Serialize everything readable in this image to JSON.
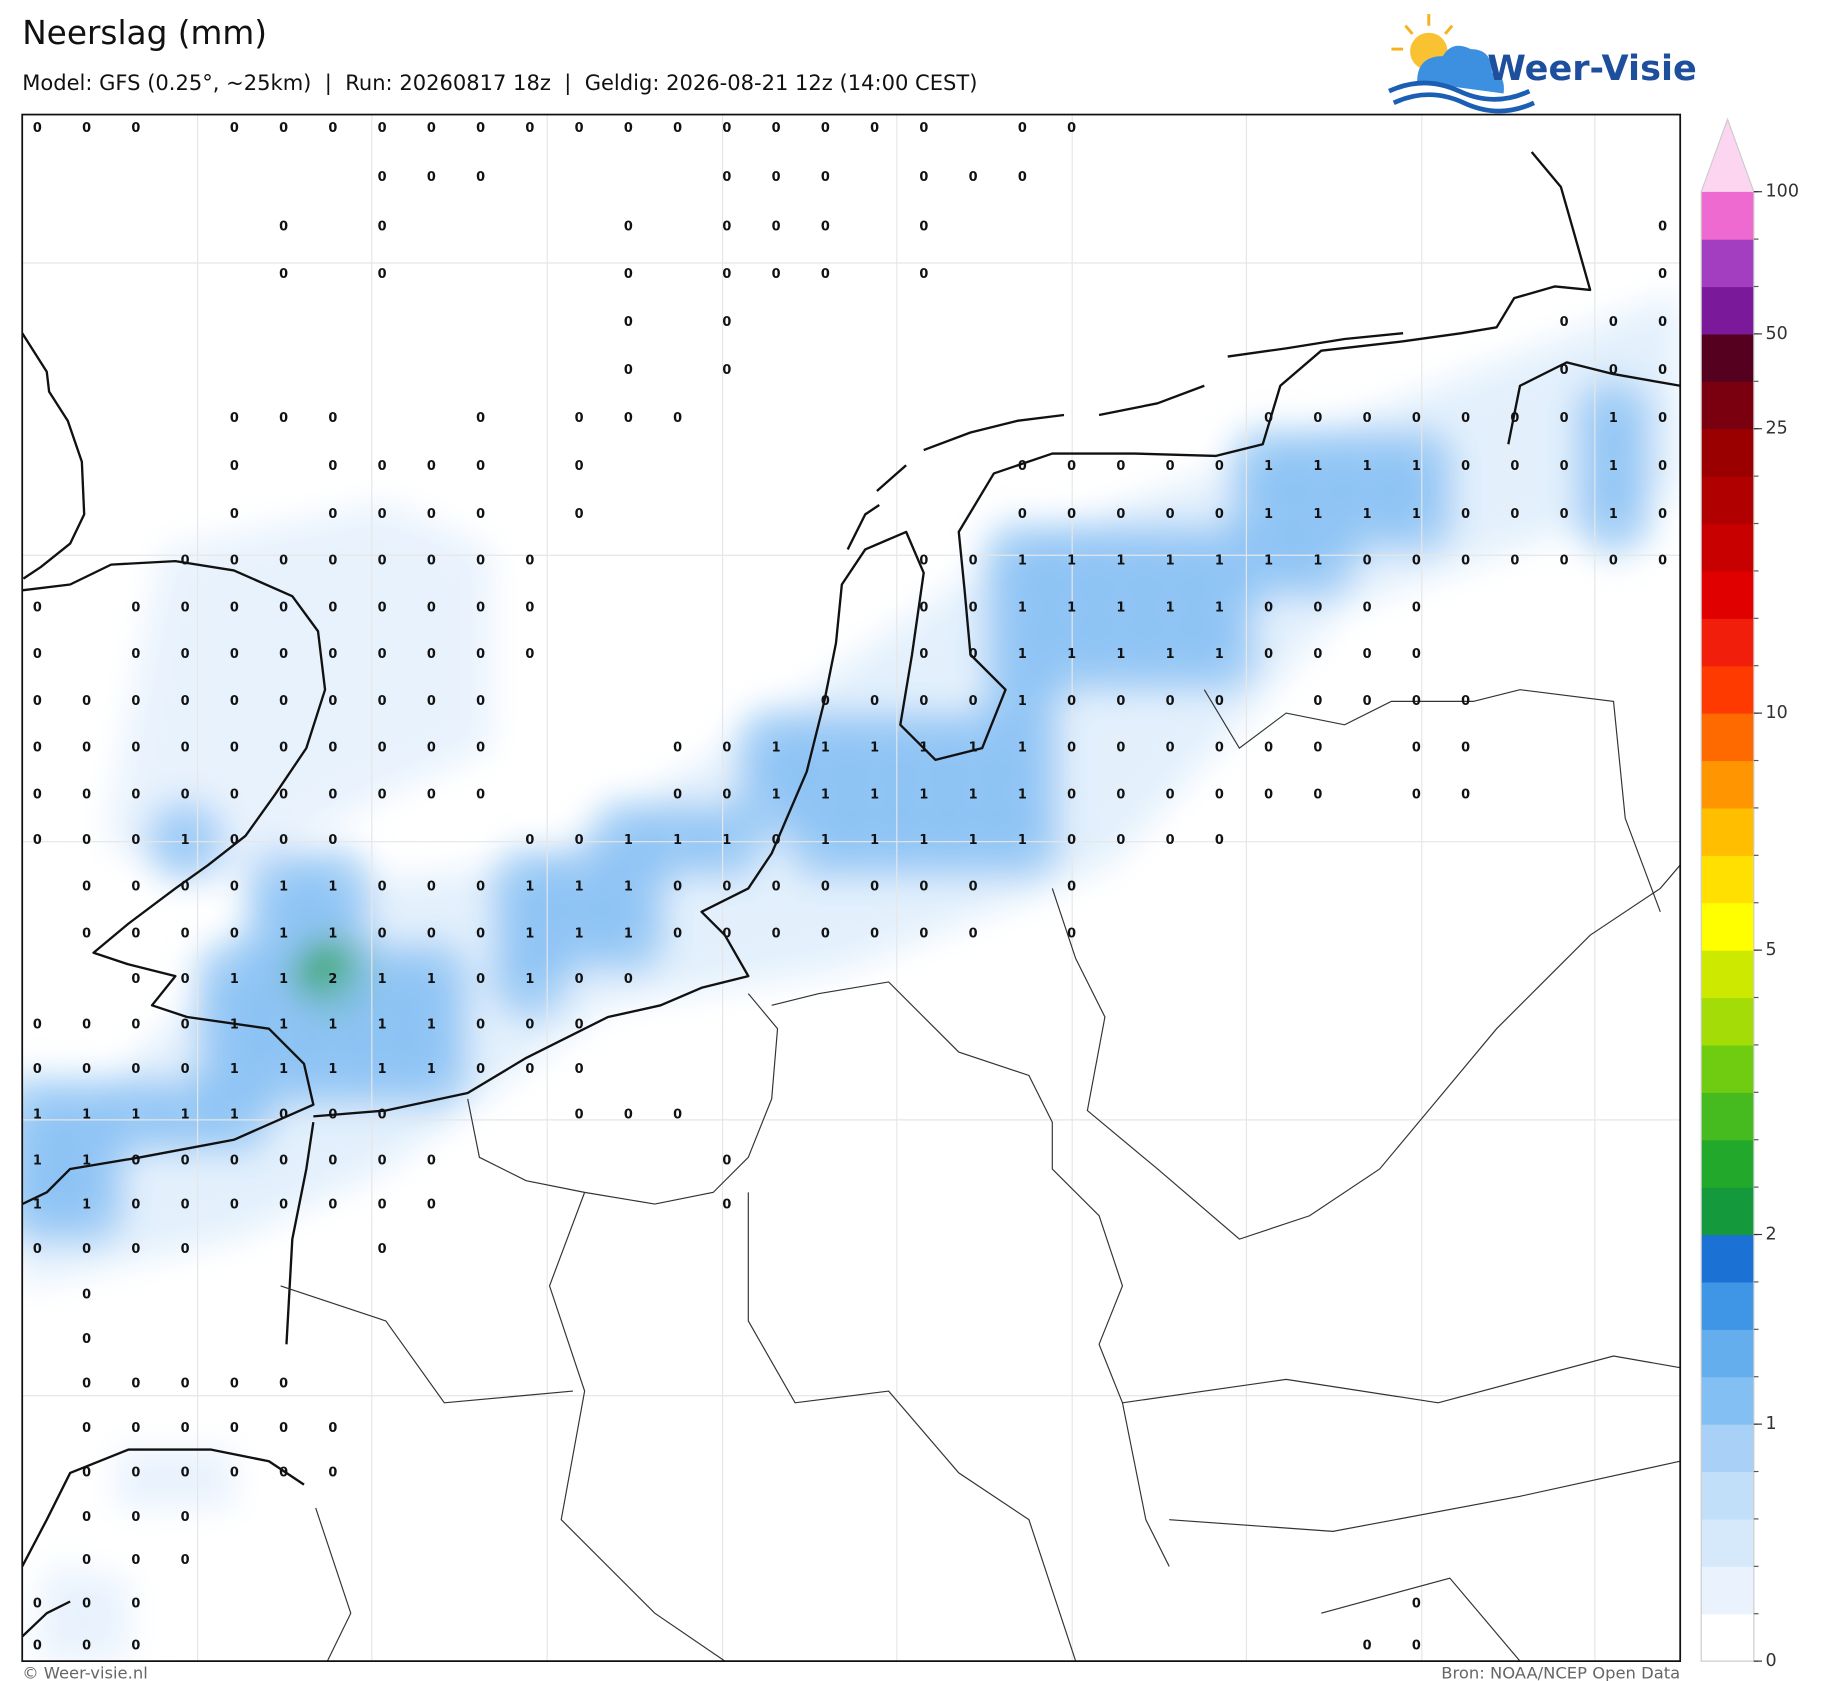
{
  "header": {
    "title": "Neerslag (mm)",
    "subtitle": "Model: GFS (0.25°, ~25km)  |  Run: 20260817 18z  |  Geldig: 2026-08-21 12z (14:00 CEST)"
  },
  "logo": {
    "text": "Weer-Visie"
  },
  "map": {
    "grid": [
      [
        0,
        0,
        0,
        null,
        0,
        0,
        0,
        0,
        0,
        0,
        0,
        0,
        0,
        0,
        0,
        0,
        0,
        0,
        0,
        null,
        0,
        0,
        null,
        null,
        null,
        null,
        null,
        null,
        null,
        null,
        null,
        null,
        null,
        null
      ],
      [
        null,
        null,
        null,
        null,
        null,
        null,
        null,
        0,
        0,
        0,
        null,
        null,
        null,
        null,
        0,
        0,
        0,
        null,
        0,
        0,
        0,
        null,
        null,
        null,
        null,
        null,
        null,
        null,
        null,
        null,
        null,
        null,
        null,
        null
      ],
      [
        null,
        null,
        null,
        null,
        null,
        0,
        null,
        0,
        null,
        null,
        null,
        null,
        0,
        null,
        0,
        0,
        0,
        null,
        0,
        null,
        null,
        null,
        null,
        null,
        null,
        null,
        null,
        null,
        null,
        null,
        null,
        null,
        null,
        0
      ],
      [
        null,
        null,
        null,
        null,
        null,
        0,
        null,
        0,
        null,
        null,
        null,
        null,
        0,
        null,
        0,
        0,
        0,
        null,
        0,
        null,
        null,
        null,
        null,
        null,
        null,
        null,
        null,
        null,
        null,
        null,
        null,
        null,
        null,
        0
      ],
      [
        null,
        null,
        null,
        null,
        null,
        null,
        null,
        null,
        null,
        null,
        null,
        null,
        0,
        null,
        0,
        null,
        null,
        null,
        null,
        null,
        null,
        null,
        null,
        null,
        null,
        null,
        null,
        null,
        null,
        null,
        null,
        0,
        0,
        0
      ],
      [
        null,
        null,
        null,
        null,
        null,
        null,
        null,
        null,
        null,
        null,
        null,
        null,
        0,
        null,
        0,
        null,
        null,
        null,
        null,
        null,
        null,
        null,
        null,
        null,
        null,
        null,
        null,
        null,
        null,
        null,
        null,
        0,
        0,
        0
      ],
      [
        null,
        null,
        null,
        null,
        0,
        0,
        0,
        null,
        null,
        0,
        null,
        0,
        0,
        0,
        null,
        null,
        null,
        null,
        null,
        null,
        null,
        null,
        null,
        null,
        null,
        0,
        0,
        0,
        0,
        0,
        0,
        0,
        1,
        0
      ],
      [
        null,
        null,
        null,
        null,
        0,
        null,
        0,
        0,
        0,
        0,
        null,
        0,
        null,
        null,
        null,
        null,
        null,
        null,
        null,
        null,
        0,
        0,
        0,
        0,
        0,
        1,
        1,
        1,
        1,
        0,
        0,
        0,
        1,
        0
      ],
      [
        null,
        null,
        null,
        null,
        0,
        null,
        0,
        0,
        0,
        0,
        null,
        0,
        null,
        null,
        null,
        null,
        null,
        null,
        null,
        null,
        0,
        0,
        0,
        0,
        0,
        1,
        1,
        1,
        1,
        0,
        0,
        0,
        1,
        0
      ],
      [
        null,
        null,
        null,
        0,
        0,
        0,
        0,
        0,
        0,
        0,
        0,
        null,
        null,
        null,
        null,
        null,
        null,
        null,
        0,
        0,
        1,
        1,
        1,
        1,
        1,
        1,
        1,
        0,
        0,
        0,
        0,
        0,
        0,
        0
      ],
      [
        0,
        null,
        0,
        0,
        0,
        0,
        0,
        0,
        0,
        0,
        0,
        null,
        null,
        null,
        null,
        null,
        null,
        null,
        0,
        0,
        1,
        1,
        1,
        1,
        1,
        0,
        0,
        0,
        0,
        null,
        null,
        null,
        null,
        null
      ],
      [
        0,
        null,
        0,
        0,
        0,
        0,
        0,
        0,
        0,
        0,
        0,
        null,
        null,
        null,
        null,
        null,
        null,
        null,
        0,
        0,
        1,
        1,
        1,
        1,
        1,
        0,
        0,
        0,
        0,
        null,
        null,
        null,
        null,
        null
      ],
      [
        0,
        0,
        0,
        0,
        0,
        0,
        0,
        0,
        0,
        0,
        null,
        null,
        null,
        null,
        null,
        null,
        0,
        0,
        0,
        0,
        1,
        0,
        0,
        0,
        0,
        null,
        0,
        0,
        0,
        0,
        null,
        null,
        null,
        null
      ],
      [
        0,
        0,
        0,
        0,
        0,
        0,
        0,
        0,
        0,
        0,
        null,
        null,
        null,
        0,
        0,
        1,
        1,
        1,
        1,
        1,
        1,
        0,
        0,
        0,
        0,
        0,
        0,
        null,
        0,
        0,
        null,
        null,
        null,
        null
      ],
      [
        0,
        0,
        0,
        0,
        0,
        0,
        0,
        0,
        0,
        0,
        null,
        null,
        null,
        0,
        0,
        1,
        1,
        1,
        1,
        1,
        1,
        0,
        0,
        0,
        0,
        0,
        0,
        null,
        0,
        0,
        null,
        null,
        null,
        null
      ],
      [
        0,
        0,
        0,
        1,
        0,
        0,
        0,
        null,
        null,
        null,
        0,
        0,
        1,
        1,
        1,
        0,
        1,
        1,
        1,
        1,
        1,
        0,
        0,
        0,
        0,
        null,
        null,
        null,
        null,
        null,
        null,
        null,
        null,
        null
      ],
      [
        null,
        0,
        0,
        0,
        0,
        1,
        1,
        0,
        0,
        0,
        1,
        1,
        1,
        0,
        0,
        0,
        0,
        0,
        0,
        0,
        null,
        0,
        null,
        null,
        null,
        null,
        null,
        null,
        null,
        null,
        null,
        null,
        null,
        null
      ],
      [
        null,
        0,
        0,
        0,
        0,
        1,
        1,
        0,
        0,
        0,
        1,
        1,
        1,
        0,
        0,
        0,
        0,
        0,
        0,
        0,
        null,
        0,
        null,
        null,
        null,
        null,
        null,
        null,
        null,
        null,
        null,
        null,
        null,
        null
      ],
      [
        null,
        null,
        0,
        0,
        1,
        1,
        2,
        1,
        1,
        0,
        1,
        0,
        0,
        null,
        null,
        null,
        null,
        null,
        null,
        null,
        null,
        null,
        null,
        null,
        null,
        null,
        null,
        null,
        null,
        null,
        null,
        null,
        null,
        null
      ],
      [
        0,
        0,
        0,
        0,
        1,
        1,
        1,
        1,
        1,
        0,
        0,
        0,
        null,
        null,
        null,
        null,
        null,
        null,
        null,
        null,
        null,
        null,
        null,
        null,
        null,
        null,
        null,
        null,
        null,
        null,
        null,
        null,
        null,
        null
      ],
      [
        0,
        0,
        0,
        0,
        1,
        1,
        1,
        1,
        1,
        0,
        0,
        0,
        null,
        null,
        null,
        null,
        null,
        null,
        null,
        null,
        null,
        null,
        null,
        null,
        null,
        null,
        null,
        null,
        null,
        null,
        null,
        null,
        null,
        null
      ],
      [
        1,
        1,
        1,
        1,
        1,
        0,
        0,
        0,
        null,
        null,
        null,
        0,
        0,
        0,
        null,
        null,
        null,
        null,
        null,
        null,
        null,
        null,
        null,
        null,
        null,
        null,
        null,
        null,
        null,
        null,
        null,
        null,
        null,
        null
      ],
      [
        1,
        1,
        0,
        0,
        0,
        0,
        0,
        0,
        0,
        null,
        null,
        null,
        null,
        null,
        0,
        null,
        null,
        null,
        null,
        null,
        null,
        null,
        null,
        null,
        null,
        null,
        null,
        null,
        null,
        null,
        null,
        null,
        null,
        null
      ],
      [
        1,
        1,
        0,
        0,
        0,
        0,
        0,
        0,
        0,
        null,
        null,
        null,
        null,
        null,
        0,
        null,
        null,
        null,
        null,
        null,
        null,
        null,
        null,
        null,
        null,
        null,
        null,
        null,
        null,
        null,
        null,
        null,
        null,
        null
      ],
      [
        0,
        0,
        0,
        0,
        null,
        null,
        null,
        0,
        null,
        null,
        null,
        null,
        null,
        null,
        null,
        null,
        null,
        null,
        null,
        null,
        null,
        null,
        null,
        null,
        null,
        null,
        null,
        null,
        null,
        null,
        null,
        null,
        null,
        null
      ],
      [
        null,
        0,
        null,
        null,
        null,
        null,
        null,
        null,
        null,
        null,
        null,
        null,
        null,
        null,
        null,
        null,
        null,
        null,
        null,
        null,
        null,
        null,
        null,
        null,
        null,
        null,
        null,
        null,
        null,
        null,
        null,
        null,
        null,
        null
      ],
      [
        null,
        0,
        null,
        null,
        null,
        null,
        null,
        null,
        null,
        null,
        null,
        null,
        null,
        null,
        null,
        null,
        null,
        null,
        null,
        null,
        null,
        null,
        null,
        null,
        null,
        null,
        null,
        null,
        null,
        null,
        null,
        null,
        null,
        null
      ],
      [
        null,
        0,
        0,
        0,
        0,
        0,
        null,
        null,
        null,
        null,
        null,
        null,
        null,
        null,
        null,
        null,
        null,
        null,
        null,
        null,
        null,
        null,
        null,
        null,
        null,
        null,
        null,
        null,
        null,
        null,
        null,
        null,
        null,
        null
      ],
      [
        null,
        0,
        0,
        0,
        0,
        0,
        0,
        null,
        null,
        null,
        null,
        null,
        null,
        null,
        null,
        null,
        null,
        null,
        null,
        null,
        null,
        null,
        null,
        null,
        null,
        null,
        null,
        null,
        null,
        null,
        null,
        null,
        null,
        null
      ],
      [
        null,
        0,
        0,
        0,
        0,
        0,
        0,
        null,
        null,
        null,
        null,
        null,
        null,
        null,
        null,
        null,
        null,
        null,
        null,
        null,
        null,
        null,
        null,
        null,
        null,
        null,
        null,
        null,
        null,
        null,
        null,
        null,
        null,
        null
      ],
      [
        null,
        0,
        0,
        0,
        null,
        null,
        null,
        null,
        null,
        null,
        null,
        null,
        null,
        null,
        null,
        null,
        null,
        null,
        null,
        null,
        null,
        null,
        null,
        null,
        null,
        null,
        null,
        null,
        null,
        null,
        null,
        null,
        null,
        null
      ],
      [
        null,
        0,
        0,
        0,
        null,
        null,
        null,
        null,
        null,
        null,
        null,
        null,
        null,
        null,
        null,
        null,
        null,
        null,
        null,
        null,
        null,
        null,
        null,
        null,
        null,
        null,
        null,
        null,
        null,
        null,
        null,
        null,
        null,
        null
      ],
      [
        0,
        0,
        0,
        null,
        null,
        null,
        null,
        null,
        null,
        null,
        null,
        null,
        null,
        null,
        null,
        null,
        null,
        null,
        null,
        null,
        null,
        null,
        null,
        null,
        null,
        null,
        null,
        null,
        0,
        null,
        null,
        null,
        null,
        null
      ],
      [
        0,
        0,
        0,
        null,
        null,
        null,
        null,
        null,
        null,
        null,
        null,
        null,
        null,
        null,
        null,
        null,
        null,
        null,
        null,
        null,
        null,
        null,
        null,
        null,
        null,
        null,
        null,
        0,
        0,
        null,
        null,
        null,
        null,
        null
      ]
    ]
  },
  "colorbar": {
    "levels": [
      0,
      0.2,
      0.4,
      0.6,
      0.8,
      1,
      1.25,
      1.5,
      1.75,
      2,
      2.5,
      3,
      3.5,
      4,
      4.5,
      5,
      6,
      7,
      8,
      9,
      10,
      12.5,
      15,
      17.5,
      20,
      22.5,
      25,
      37.5,
      50,
      62.5,
      75,
      100
    ],
    "colors": [
      "#ffffff",
      "#eaf3fd",
      "#d6e9fb",
      "#c2dffa",
      "#a9d1f7",
      "#84bff3",
      "#64aeee",
      "#3f96e6",
      "#1b72d4",
      "#149a3c",
      "#22a82a",
      "#46bb20",
      "#6fcc10",
      "#a3dc06",
      "#cde900",
      "#ffff00",
      "#ffe000",
      "#ffbf00",
      "#ff9500",
      "#ff6a00",
      "#ff3a00",
      "#f01e0a",
      "#e00000",
      "#c80000",
      "#b00000",
      "#9a0000",
      "#7a0010",
      "#55001e",
      "#7a1a9a",
      "#a43ec0",
      "#ee6ad0"
    ],
    "extend_color": "#fcd5f0",
    "ticks": [
      0,
      1,
      2,
      5,
      10,
      25,
      50,
      100
    ]
  },
  "footer": {
    "left": "© Weer-visie.nl",
    "right": "Bron: NOAA/NCEP Open Data"
  }
}
